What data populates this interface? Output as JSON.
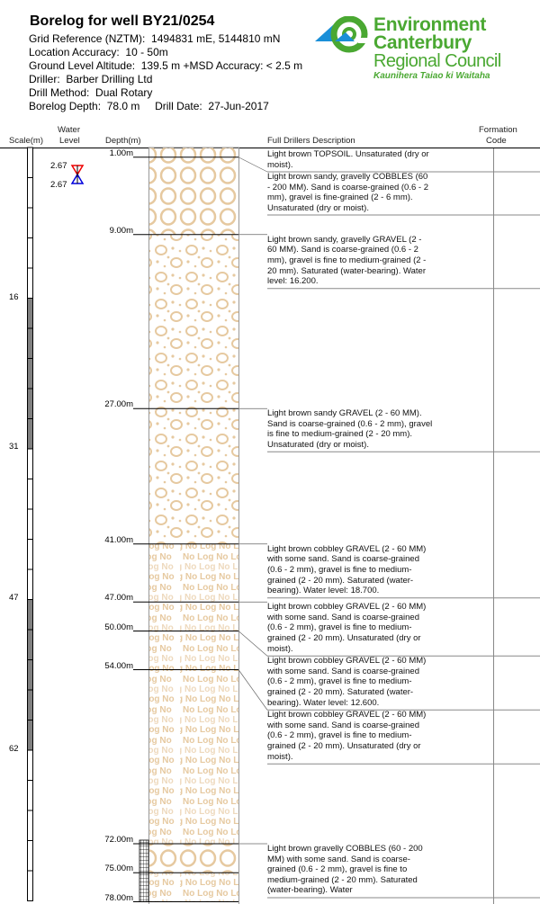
{
  "header": {
    "title": "Borelog for well BY21/0254",
    "grid_reference": "Grid Reference (NZTM):  1494831 mE, 5144810 mN",
    "location_accuracy": "Location Accuracy:  10 - 50m",
    "ground_level": "Ground Level Altitude:  139.5 m +MSD Accuracy: < 2.5 m",
    "driller": "Driller:  Barber Drilling Ltd",
    "drill_method": "Drill Method:  Dual Rotary",
    "depth_date": "Borelog Depth:  78.0 m     Drill Date:  27-Jun-2017"
  },
  "logo": {
    "line1": "Environment",
    "line2": "Canterbury",
    "line3": "Regional Council",
    "line4": "Kaunihera Taiao ki Waitaha",
    "colors": {
      "green": "#4aa832",
      "blue": "#1a8fd8"
    }
  },
  "columns": {
    "scale": "Scale(m)",
    "water_level_1": "Water",
    "water_level_2": "Level",
    "depth": "Depth(m)",
    "description": "Full Drillers Description",
    "formation_1": "Formation",
    "formation_2": "Code"
  },
  "scale_labels": [
    {
      "value": "16",
      "depth": 15.5
    },
    {
      "value": "31",
      "depth": 31.0
    },
    {
      "value": "47",
      "depth": 46.6
    },
    {
      "value": "62",
      "depth": 62.2
    }
  ],
  "water_levels": [
    {
      "label": "2.67",
      "marker": "red-triangle-down"
    },
    {
      "label": "2.67",
      "marker": "blue-triangle-up"
    }
  ],
  "layers": [
    {
      "top": 0,
      "bottom": 1,
      "depth_label": "1.00m",
      "pattern": "cobbles",
      "description": "Light brown TOPSOIL. Unsaturated (dry or moist)."
    },
    {
      "top": 1,
      "bottom": 9,
      "depth_label": "9.00m",
      "pattern": "cobbles",
      "description": "Light brown sandy, gravelly COBBLES (60 - 200 MM). Sand is coarse-grained (0.6 - 2 mm), gravel is fine-grained (2 - 6 mm). Unsaturated (dry or moist)."
    },
    {
      "top": 9,
      "bottom": 27,
      "depth_label": "27.00m",
      "pattern": "gravel",
      "description": "Light brown sandy, gravelly GRAVEL (2 - 60 MM). Sand is coarse-grained (0.6 - 2 mm), gravel is fine to medium-grained (2 - 20 mm). Saturated (water-bearing). Water level: 16.200."
    },
    {
      "top": 27,
      "bottom": 41,
      "depth_label": "41.00m",
      "pattern": "gravel",
      "description": "Light brown sandy GRAVEL (2 - 60 MM). Sand is coarse-grained (0.6 - 2 mm), gravel is fine to medium-grained (2 - 20 mm). Unsaturated (dry or moist)."
    },
    {
      "top": 41,
      "bottom": 47,
      "depth_label": "47.00m",
      "pattern": "nolog",
      "description": "Light brown cobbley GRAVEL (2 - 60 MM) with some sand. Sand is coarse-grained (0.6 - 2 mm), gravel is fine to medium-grained (2 - 20 mm). Saturated (water-bearing). Water level: 18.700."
    },
    {
      "top": 47,
      "bottom": 50,
      "depth_label": "50.00m",
      "pattern": "nolog",
      "description": "Light brown cobbley GRAVEL (2 - 60 MM) with some sand. Sand is coarse-grained (0.6 - 2 mm), gravel is fine to medium-grained (2 - 20 mm). Unsaturated (dry or moist)."
    },
    {
      "top": 50,
      "bottom": 54,
      "depth_label": "54.00m",
      "pattern": "nolog",
      "description": "Light brown cobbley GRAVEL (2 - 60 MM) with some sand. Sand is coarse-grained (0.6 - 2 mm), gravel is fine to medium-grained (2 - 20 mm). Saturated (water-bearing). Water level: 12.600."
    },
    {
      "top": 54,
      "bottom": 72,
      "depth_label": "72.00m",
      "pattern": "nolog",
      "description": "Light brown cobbley GRAVEL (2 - 60 MM) with some sand. Sand is coarse-grained (0.6 - 2 mm), gravel is fine to medium-grained (2 - 20 mm). Unsaturated (dry or moist)."
    },
    {
      "top": 72,
      "bottom": 75,
      "depth_label": "75.00m",
      "pattern": "cobbles",
      "description": "Light brown gravelly COBBLES (60 - 200 MM) with some sand. Sand is coarse-grained (0.6 - 2 mm), gravel is fine to medium-grained (2 - 20 mm). Saturated (water-bearing). Water"
    },
    {
      "top": 75,
      "bottom": 78,
      "depth_label": "78.00m",
      "pattern": "nolog",
      "description": ""
    }
  ],
  "screen": {
    "top": 72,
    "bottom": 78
  },
  "pattern_text": "No Log",
  "pattern_color": "#e6c9a0"
}
